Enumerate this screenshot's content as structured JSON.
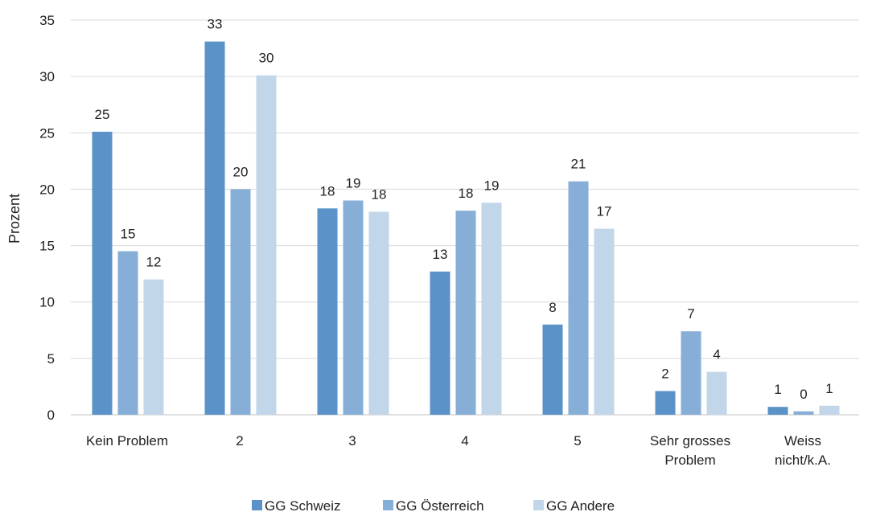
{
  "chart_data": {
    "type": "bar",
    "title": "",
    "xlabel": "",
    "ylabel": "Prozent",
    "ylim": [
      0,
      35
    ],
    "yticks": [
      0,
      5,
      10,
      15,
      20,
      25,
      30,
      35
    ],
    "grid": true,
    "legend_position": "bottom",
    "categories": [
      [
        "Kein Problem"
      ],
      [
        "2"
      ],
      [
        "3"
      ],
      [
        "4"
      ],
      [
        "5"
      ],
      [
        "Sehr grosses",
        "Problem"
      ],
      [
        "Weiss",
        "nicht/k.A."
      ]
    ],
    "series": [
      {
        "name": "GG Schweiz",
        "color": "#5b92c8",
        "values": [
          25.1,
          33.1,
          18.3,
          12.7,
          8.0,
          2.1,
          0.7
        ],
        "labels": [
          "25",
          "33",
          "18",
          "13",
          "8",
          "2",
          "1"
        ]
      },
      {
        "name": "GG Österreich",
        "color": "#86aed7",
        "values": [
          14.5,
          20.0,
          19.0,
          18.1,
          20.7,
          7.4,
          0.3
        ],
        "labels": [
          "15",
          "20",
          "19",
          "18",
          "21",
          "7",
          "0"
        ]
      },
      {
        "name": "GG Andere",
        "color": "#c2d6ea",
        "values": [
          12.0,
          30.1,
          18.0,
          18.8,
          16.5,
          3.8,
          0.8
        ],
        "labels": [
          "12",
          "30",
          "18",
          "19",
          "17",
          "4",
          "1"
        ]
      }
    ]
  }
}
